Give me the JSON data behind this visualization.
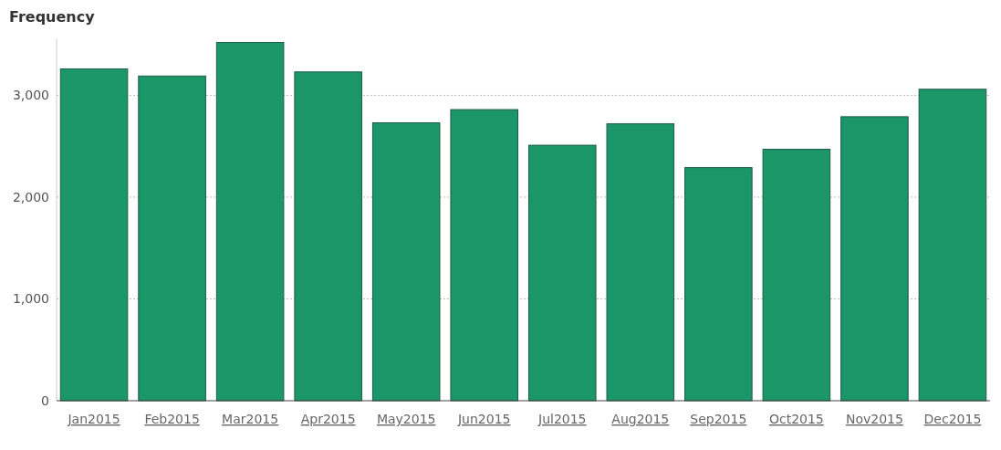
{
  "chart_data": {
    "type": "bar",
    "ylabel": "Frequency",
    "categories": [
      "Jan2015",
      "Feb2015",
      "Mar2015",
      "Apr2015",
      "May2015",
      "Jun2015",
      "Jul2015",
      "Aug2015",
      "Sep2015",
      "Oct2015",
      "Nov2015",
      "Dec2015"
    ],
    "values": [
      3260,
      3190,
      3520,
      3230,
      2730,
      2860,
      2510,
      2720,
      2290,
      2470,
      2790,
      3060
    ],
    "color": "#1a9669",
    "ylim": [
      0,
      3560
    ],
    "yticks": [
      {
        "value": 0,
        "label": "0"
      },
      {
        "value": 1000,
        "label": "1,000"
      },
      {
        "value": 2000,
        "label": "2,000"
      },
      {
        "value": 3000,
        "label": "3,000"
      }
    ],
    "grid": "y"
  }
}
